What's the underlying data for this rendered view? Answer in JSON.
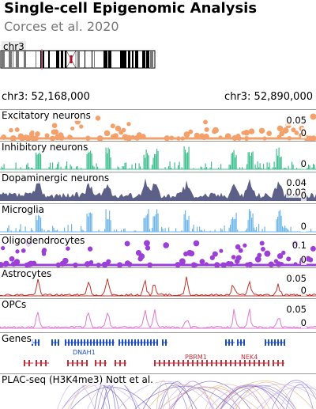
{
  "header": {
    "title": "Single-cell Epigenomic Analysis",
    "subtitle": "Corces et al. 2020"
  },
  "chromosome": {
    "name": "chr3",
    "start_label": "chr3: 52,168,000",
    "end_label": "chr3: 52,890,000"
  },
  "tracks": [
    {
      "label": "Excitatory neurons",
      "kind": "dots",
      "color": "#f4a06a",
      "ticks": [
        "0.05",
        "0"
      ]
    },
    {
      "label": "Inhibitory neurons",
      "kind": "bars",
      "color": "#3dbf8e",
      "ticks": [
        "0"
      ]
    },
    {
      "label": "Dopaminergic neurons",
      "kind": "area",
      "color": "#4a4e7a",
      "ticks": [
        "0.04",
        "0.02",
        "0"
      ]
    },
    {
      "label": "Microglia",
      "kind": "bars",
      "color": "#6fb7e8",
      "ticks": [
        "0"
      ]
    },
    {
      "label": "Oligodendrocytes",
      "kind": "dots",
      "color": "#9b3fd6",
      "ticks": [
        "0.1",
        "0"
      ]
    },
    {
      "label": "Astrocytes",
      "kind": "line",
      "color": "#c0352b",
      "ticks": [
        "0.05",
        "0"
      ]
    },
    {
      "label": "OPCs",
      "kind": "line",
      "color": "#e07ad0",
      "ticks": [
        "0.05",
        "0"
      ]
    }
  ],
  "genes": {
    "label": "Genes",
    "names": [
      "DNAH1",
      "PBRM1",
      "NEK4"
    ],
    "plus_color": "#1f4fbf",
    "minus_color": "#c0303a"
  },
  "plac": {
    "label": "PLAC-seq (H3K4me3) Nott et al."
  }
}
